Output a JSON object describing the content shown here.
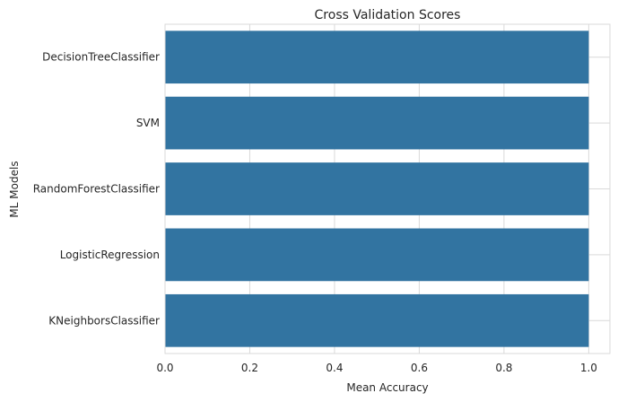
{
  "chart_data": {
    "type": "bar",
    "orientation": "horizontal",
    "title": "Cross Validation Scores",
    "xlabel": "Mean Accuracy",
    "ylabel": "ML Models",
    "categories": [
      "DecisionTreeClassifier",
      "SVM",
      "RandomForestClassifier",
      "LogisticRegression",
      "KNeighborsClassifier"
    ],
    "values": [
      1.0,
      1.0,
      1.0,
      1.0,
      1.0
    ],
    "xlim": [
      0,
      1.05
    ],
    "xticks": [
      0.0,
      0.2,
      0.4,
      0.6,
      0.8,
      1.0
    ],
    "xtick_labels": [
      "0.0",
      "0.2",
      "0.4",
      "0.6",
      "0.8",
      "1.0"
    ],
    "bar_color": "#3274a1",
    "grid": true
  }
}
